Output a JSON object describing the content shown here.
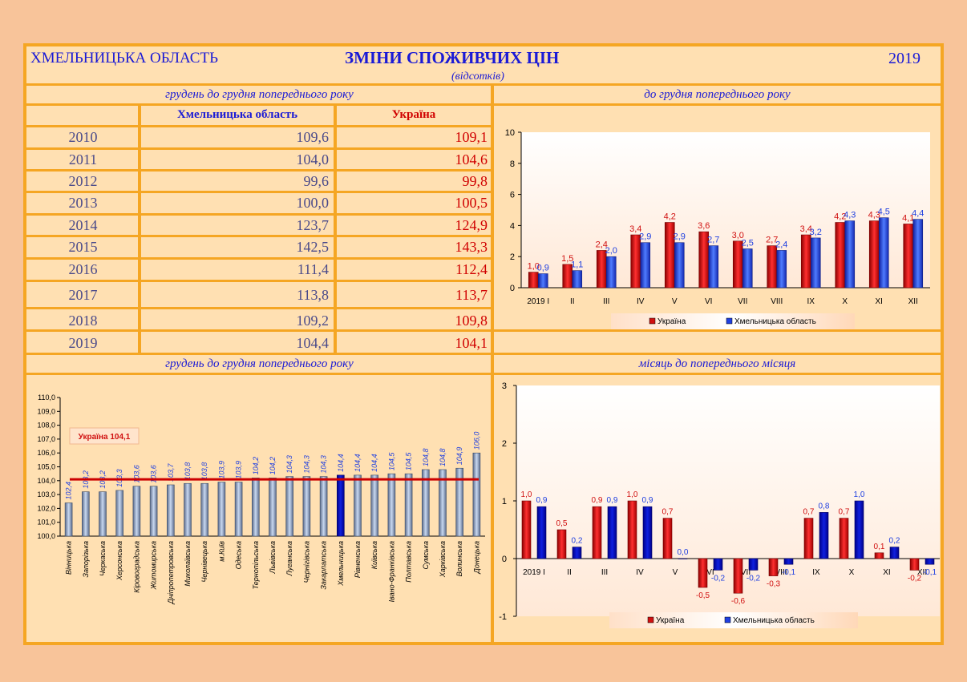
{
  "header": {
    "region": "ХМЕЛЬНИЦЬКА ОБЛАСТЬ",
    "title": "ЗМІНИ СПОЖИВЧИХ ЦІН",
    "subtitle": "(відсотків)",
    "year": "2019"
  },
  "sections": {
    "table_title": "грудень до грудня попереднього року",
    "chart1_title": "до грудня попереднього року",
    "chart2_title": "грудень до грудня попереднього року",
    "chart3_title": "місяць до попереднього місяця"
  },
  "table": {
    "col_region": "Хмельницька область",
    "col_ukraine": "Україна",
    "rows": [
      {
        "year": "2010",
        "region": "109,6",
        "ukraine": "109,1"
      },
      {
        "year": "2011",
        "region": "104,0",
        "ukraine": "104,6"
      },
      {
        "year": "2012",
        "region": "99,6",
        "ukraine": "99,8"
      },
      {
        "year": "2013",
        "region": "100,0",
        "ukraine": "100,5"
      },
      {
        "year": "2014",
        "region": "123,7",
        "ukraine": "124,9"
      },
      {
        "year": "2015",
        "region": "142,5",
        "ukraine": "143,3"
      },
      {
        "year": "2016",
        "region": "111,4",
        "ukraine": "112,4"
      },
      {
        "year": "2017",
        "region": "113,8",
        "ukraine": "113,7"
      },
      {
        "year": "2018",
        "region": "109,2",
        "ukraine": "109,8"
      },
      {
        "year": "2019",
        "region": "104,4",
        "ukraine": "104,1"
      }
    ]
  },
  "colors": {
    "ukraine": "#d01010",
    "region": "#2040e0",
    "region_dark": "#0a0aa0",
    "line": "#cc0000"
  },
  "chart_data": [
    {
      "type": "bar",
      "ylim": [
        0,
        10
      ],
      "yticks": [
        0,
        2,
        4,
        6,
        8,
        10
      ],
      "categories": [
        "2019 I",
        "II",
        "III",
        "IV",
        "V",
        "VI",
        "VII",
        "VIII",
        "IX",
        "X",
        "XI",
        "XII"
      ],
      "series": [
        {
          "name": "Україна",
          "values": [
            1.0,
            1.5,
            2.4,
            3.4,
            4.2,
            3.6,
            3.0,
            2.7,
            3.4,
            4.2,
            4.3,
            4.1
          ],
          "labels": [
            "1,0",
            "1,5",
            "2,4",
            "3,4",
            "4,2",
            "3,6",
            "3,0",
            "2,7",
            "3,4",
            "4,2",
            "4,3",
            "4,1"
          ]
        },
        {
          "name": "Хмельницька область",
          "values": [
            0.9,
            1.1,
            2.0,
            2.9,
            2.9,
            2.7,
            2.5,
            2.4,
            3.2,
            4.3,
            4.5,
            4.4
          ],
          "labels": [
            "0,9",
            "1,1",
            "2,0",
            "2,9",
            "2,9",
            "2,7",
            "2,5",
            "2,4",
            "3,2",
            "4,3",
            "4,5",
            "4,4"
          ]
        }
      ]
    },
    {
      "type": "bar",
      "ylim": [
        100,
        110
      ],
      "yticks": [
        "100,0",
        "101,0",
        "102,0",
        "103,0",
        "104,0",
        "105,0",
        "106,0",
        "107,0",
        "108,0",
        "109,0",
        "110,0"
      ],
      "categories": [
        "Вінницька",
        "Запорізька",
        "Черкаська",
        "Херсонська",
        "Кіровоградська",
        "Житомирська",
        "Дніпропетровська",
        "Миколаївська",
        "Чернівецька",
        "м.Київ",
        "Одеська",
        "Тернопільська",
        "Львівська",
        "Луганська",
        "Чернігівська",
        "Закарпатська",
        "Хмельницька",
        "Рівненська",
        "Київська",
        "Івано-Франківська",
        "Полтавська",
        "Сумська",
        "Харківська",
        "Волинська",
        "Донецька"
      ],
      "values": [
        102.4,
        103.2,
        103.2,
        103.3,
        103.6,
        103.6,
        103.7,
        103.8,
        103.8,
        103.9,
        103.9,
        104.2,
        104.2,
        104.3,
        104.3,
        104.3,
        104.4,
        104.4,
        104.4,
        104.5,
        104.5,
        104.8,
        104.8,
        104.9,
        106.0
      ],
      "labels": [
        "102,4",
        "103,2",
        "103,2",
        "103,3",
        "103,6",
        "103,6",
        "103,7",
        "103,8",
        "103,8",
        "103,9",
        "103,9",
        "104,2",
        "104,2",
        "104,3",
        "104,3",
        "104,3",
        "104,4",
        "104,4",
        "104,4",
        "104,5",
        "104,5",
        "104,8",
        "104,8",
        "104,9",
        "106,0"
      ],
      "highlight": "Хмельницька",
      "reference": {
        "label": "Україна 104,1",
        "value": 104.1
      }
    },
    {
      "type": "bar",
      "ylim": [
        -1,
        3
      ],
      "yticks": [
        -1,
        0,
        1,
        2,
        3
      ],
      "categories": [
        "2019 I",
        "II",
        "III",
        "IV",
        "V",
        "VI",
        "VII",
        "VIII",
        "IX",
        "X",
        "XI",
        "XII"
      ],
      "series": [
        {
          "name": "Україна",
          "values": [
            1.0,
            0.5,
            0.9,
            1.0,
            0.7,
            -0.5,
            -0.6,
            -0.3,
            0.7,
            0.7,
            0.1,
            -0.2
          ],
          "labels": [
            "1,0",
            "0,5",
            "0,9",
            "1,0",
            "0,7",
            "-0,5",
            "-0,6",
            "-0,3",
            "0,7",
            "0,7",
            "0,1",
            "-0,2"
          ]
        },
        {
          "name": "Хмельницька область",
          "values": [
            0.9,
            0.2,
            0.9,
            0.9,
            0.0,
            -0.2,
            -0.2,
            -0.1,
            0.8,
            1.0,
            0.2,
            -0.1
          ],
          "labels": [
            "0,9",
            "0,2",
            "0,9",
            "0,9",
            "0,0",
            "-0,2",
            "-0,2",
            "-0,1",
            "0,8",
            "1,0",
            "0,2",
            "-0,1"
          ]
        }
      ]
    }
  ]
}
